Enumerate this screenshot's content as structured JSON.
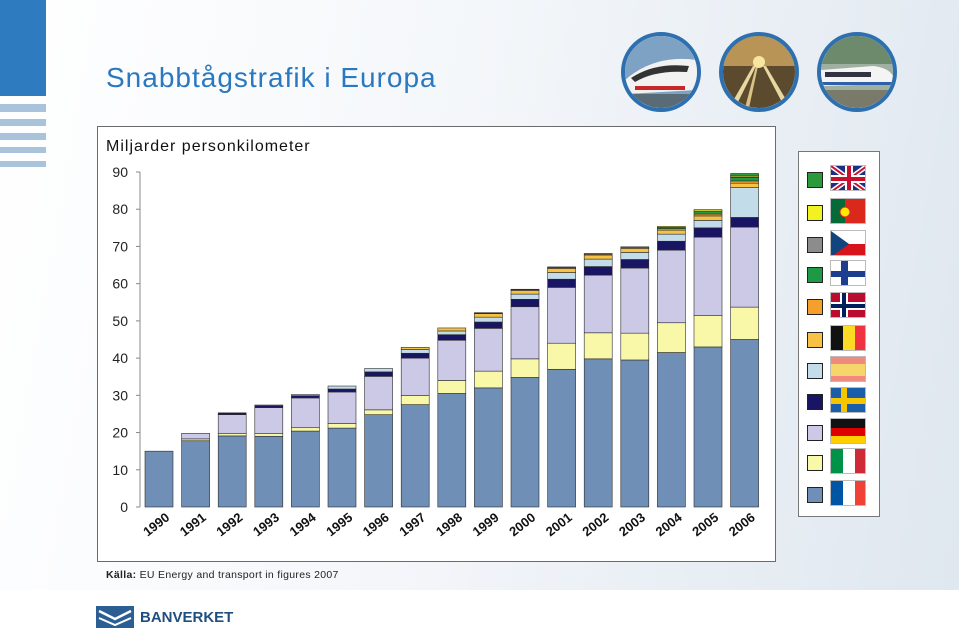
{
  "slide": {
    "title": "Snabbtågstrafik i Europa",
    "source_label": "Källa:",
    "source_text": "EU Energy and transport in figures 2007",
    "logo_text": "BANVERKET"
  },
  "chart_data": {
    "type": "bar",
    "stacked": true,
    "title": "Miljarder personkilometer",
    "xlabel": "",
    "ylabel": "",
    "ylim": [
      0,
      90
    ],
    "yticks": [
      0,
      10,
      20,
      30,
      40,
      50,
      60,
      70,
      80,
      90
    ],
    "grid": false,
    "legend_position": "right",
    "categories": [
      "1990",
      "1991",
      "1992",
      "1993",
      "1994",
      "1995",
      "1996",
      "1997",
      "1998",
      "1999",
      "2000",
      "2001",
      "2002",
      "2003",
      "2004",
      "2005",
      "2006"
    ],
    "series": [
      {
        "flag": "France",
        "color": "#6f8fb7",
        "values": [
          15.0,
          17.8,
          19.1,
          19.0,
          20.4,
          21.2,
          24.8,
          27.5,
          30.5,
          32.0,
          34.8,
          37.0,
          39.8,
          39.5,
          41.5,
          43.0,
          45.0
        ]
      },
      {
        "flag": "Italy",
        "color": "#f8f8a8",
        "values": [
          0,
          0.5,
          0.7,
          0.7,
          0.9,
          1.2,
          1.3,
          2.5,
          3.5,
          4.5,
          5.0,
          7.0,
          7.0,
          7.2,
          8.0,
          8.5,
          8.7
        ]
      },
      {
        "flag": "Germany",
        "color": "#ccc9e6",
        "values": [
          0,
          1.5,
          5.0,
          7.0,
          8.0,
          8.5,
          9.0,
          10.0,
          10.8,
          11.5,
          14.0,
          15.0,
          15.5,
          17.5,
          19.5,
          21.0,
          21.5
        ]
      },
      {
        "flag": "Sweden",
        "color": "#1a1464",
        "values": [
          0,
          0,
          0.5,
          0.5,
          0.6,
          0.8,
          1.2,
          1.3,
          1.5,
          1.7,
          2.0,
          2.2,
          2.3,
          2.3,
          2.4,
          2.5,
          2.6
        ]
      },
      {
        "flag": "Spain",
        "color": "#c2dcea",
        "values": [
          0,
          0,
          0,
          0.2,
          0.3,
          0.8,
          0.9,
          1.0,
          1.0,
          1.3,
          1.4,
          1.8,
          2.0,
          1.9,
          1.9,
          2.0,
          8.0
        ]
      },
      {
        "flag": "Belgium",
        "color": "#f7c244",
        "values": [
          0,
          0,
          0,
          0,
          0,
          0,
          0,
          0.6,
          0.8,
          1.0,
          1.0,
          1.1,
          1.1,
          1.1,
          1.1,
          1.2,
          1.2
        ]
      },
      {
        "flag": "Norway",
        "color": "#f5a02d",
        "values": [
          0,
          0,
          0,
          0,
          0,
          0,
          0,
          0,
          0,
          0.1,
          0.2,
          0.3,
          0.3,
          0.3,
          0.4,
          0.5,
          0.6
        ]
      },
      {
        "flag": "Finland",
        "color": "#1e9a46",
        "values": [
          0,
          0,
          0,
          0,
          0,
          0,
          0,
          0,
          0,
          0.1,
          0.1,
          0.1,
          0.1,
          0.1,
          0.3,
          0.8,
          0.9
        ]
      },
      {
        "flag": "Czech Republic",
        "color": "#8c8c8c",
        "values": [
          0,
          0,
          0,
          0,
          0,
          0,
          0,
          0,
          0,
          0,
          0,
          0,
          0,
          0,
          0,
          0,
          0.2
        ]
      },
      {
        "flag": "Portugal",
        "color": "#f2f222",
        "values": [
          0,
          0,
          0,
          0,
          0,
          0,
          0,
          0,
          0,
          0,
          0,
          0,
          0,
          0,
          0.3,
          0.4,
          0.4
        ]
      },
      {
        "flag": "United Kingdom",
        "color": "#2a9a3a",
        "values": [
          0,
          0,
          0,
          0,
          0,
          0,
          0,
          0,
          0,
          0,
          0,
          0,
          0,
          0,
          0,
          0,
          0.5
        ]
      }
    ]
  },
  "legend": {
    "items_top_to_bottom": [
      {
        "flag": "uk",
        "color": "#2a9a3a"
      },
      {
        "flag": "portugal",
        "color": "#f2f222"
      },
      {
        "flag": "czech",
        "color": "#8c8c8c"
      },
      {
        "flag": "finland",
        "color": "#1e9a46"
      },
      {
        "flag": "norway",
        "color": "#f5a02d"
      },
      {
        "flag": "belgium",
        "color": "#f7c244"
      },
      {
        "flag": "spain",
        "color": "#c2dcea"
      },
      {
        "flag": "sweden",
        "color": "#1a1464"
      },
      {
        "flag": "germany",
        "color": "#ccc9e6"
      },
      {
        "flag": "italy",
        "color": "#f8f8a8"
      },
      {
        "flag": "france",
        "color": "#6f8fb7"
      }
    ]
  },
  "photos": [
    {
      "icon": "tgv-train-front-photo"
    },
    {
      "icon": "rail-tracks-sunset-photo"
    },
    {
      "icon": "high-speed-train-side-photo"
    }
  ]
}
